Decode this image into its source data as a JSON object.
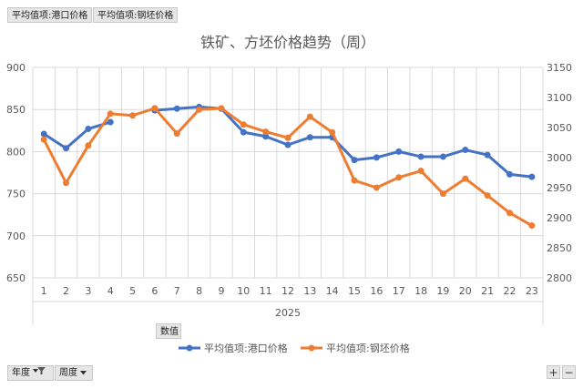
{
  "field_buttons": {
    "series1_field": "平均值项:港口价格",
    "series2_field": "平均值项:钢坯价格",
    "values_field": "数值",
    "year_filter": "年度",
    "week_filter": "周度"
  },
  "zoom": {
    "plus": "+",
    "minus": "−"
  },
  "colors": {
    "series1": "#4472c4",
    "series2": "#ed7d31",
    "grid": "#d9d9d9",
    "text": "#595959"
  },
  "chart_data": {
    "type": "line",
    "title": "铁矿、方坯价格趋势（周）",
    "x_group_label": "2025",
    "categories": [
      "1",
      "2",
      "3",
      "4",
      "5",
      "6",
      "7",
      "8",
      "9",
      "10",
      "11",
      "12",
      "13",
      "14",
      "15",
      "16",
      "17",
      "18",
      "19",
      "20",
      "21",
      "22",
      "23"
    ],
    "y_left": {
      "min": 650,
      "max": 900,
      "ticks": [
        650,
        700,
        750,
        800,
        850,
        900
      ]
    },
    "y_right": {
      "min": 2800,
      "max": 3150,
      "ticks": [
        2800,
        2850,
        2900,
        2950,
        3000,
        3050,
        3100,
        3150
      ]
    },
    "grid": "vertical and horizontal",
    "legend_position": "bottom",
    "series": [
      {
        "name": "平均值项:港口价格",
        "axis": "left",
        "color": "#4472c4",
        "segments": [
          {
            "start": 1,
            "values": [
              821,
              804,
              827,
              835
            ]
          },
          {
            "start": 6,
            "values": [
              849,
              851,
              853,
              851,
              823,
              818,
              808,
              817,
              817,
              790,
              793,
              800,
              794,
              794,
              802,
              796,
              773,
              770
            ]
          }
        ]
      },
      {
        "name": "平均值项:钢坯价格",
        "axis": "right",
        "color": "#ed7d31",
        "segments": [
          {
            "start": 1,
            "values": [
              3030,
              2958,
              3020,
              3073,
              3070,
              3082,
              3040,
              3080,
              3082,
              3055,
              3043,
              3033,
              3068,
              3042,
              2962,
              2950,
              2967,
              2978,
              2940,
              2965,
              2937,
              2908,
              2887
            ]
          }
        ]
      }
    ]
  }
}
